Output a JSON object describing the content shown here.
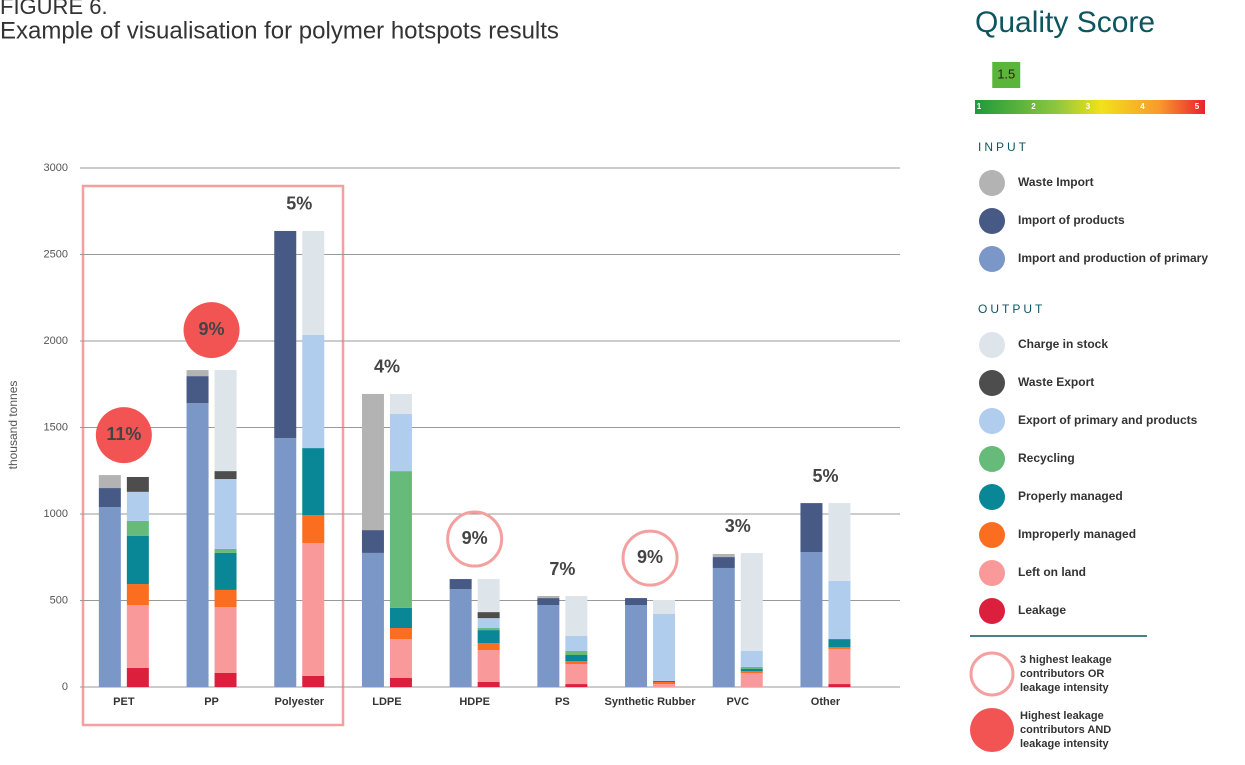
{
  "header": {
    "figure": "FIGURE 6.",
    "title": "Example of visualisation for polymer hotspots results"
  },
  "chart_data": {
    "type": "stacked_bar_pair",
    "ylabel": "thousand tonnes",
    "ylim": [
      0,
      3000
    ],
    "yticks": [
      0,
      500,
      1000,
      1500,
      2000,
      2500,
      3000
    ],
    "grid": true,
    "categories": [
      "PET",
      "PP",
      "Polyester",
      "LDPE",
      "HDPE",
      "PS",
      "Synthetic Rubber",
      "PVC",
      "Other"
    ],
    "groups": [
      "INPUT",
      "OUTPUT"
    ],
    "series": [
      {
        "name": "Waste Import",
        "group": 0,
        "color": "#b3b3b3",
        "values": [
          75,
          35,
          0,
          787,
          0,
          12,
          0,
          18,
          0
        ]
      },
      {
        "name": "Import of products",
        "group": 0,
        "color": "#475a85",
        "values": [
          110,
          156,
          1197,
          132,
          58,
          40,
          40,
          63,
          283
        ]
      },
      {
        "name": "Import and production of  primary",
        "group": 0,
        "color": "#7a97c7",
        "values": [
          1040,
          1641,
          1439,
          775,
          566,
          474,
          474,
          688,
          780
        ]
      },
      {
        "name": "Charge in stock",
        "group": 1,
        "color": "#dde4ea",
        "values": [
          0,
          584,
          601,
          116,
          191,
          231,
          81,
          566,
          450
        ]
      },
      {
        "name": "Waste Export",
        "group": 1,
        "color": "#4d4d4d",
        "values": [
          86,
          46,
          0,
          0,
          35,
          0,
          0,
          0,
          0
        ]
      },
      {
        "name": "Export of primary and  products",
        "group": 1,
        "color": "#b0cdee",
        "values": [
          168,
          404,
          654,
          330,
          57,
          87,
          387,
          92,
          336
        ]
      },
      {
        "name": "Recycling",
        "group": 1,
        "color": "#66bb7a",
        "values": [
          87,
          23,
          0,
          791,
          12,
          23,
          0,
          12,
          0
        ]
      },
      {
        "name": "Properly managed",
        "group": 1,
        "color": "#0a8796",
        "values": [
          278,
          214,
          387,
          116,
          75,
          35,
          6,
          12,
          46
        ]
      },
      {
        "name": "Improperly managed",
        "group": 1,
        "color": "#fb6d1f",
        "values": [
          121,
          99,
          162,
          64,
          40,
          17,
          12,
          11,
          11
        ]
      },
      {
        "name": "Left on land",
        "group": 1,
        "color": "#f9999a",
        "values": [
          364,
          381,
          768,
          225,
          185,
          116,
          17,
          81,
          203
        ]
      },
      {
        "name": "Leakage",
        "group": 1,
        "color": "#dc1f3c",
        "values": [
          110,
          81,
          64,
          52,
          29,
          17,
          0,
          0,
          17
        ]
      }
    ],
    "annotations": [
      {
        "text": "11%",
        "marker": "filled"
      },
      {
        "text": "9%",
        "marker": "filled"
      },
      {
        "text": "5%"
      },
      {
        "text": "4%"
      },
      {
        "text": "9%",
        "marker": "ring"
      },
      {
        "text": "7%"
      },
      {
        "text": "9%",
        "marker": "ring"
      },
      {
        "text": "3%"
      },
      {
        "text": "5%"
      }
    ],
    "marker_legend": [
      {
        "marker": "ring",
        "lines": [
          "3 highest leakage",
          "contributors  OR",
          "leakage intensity"
        ]
      },
      {
        "marker": "filled",
        "lines": [
          "Highest leakage",
          "contributors  AND",
          "leakage intensity"
        ]
      }
    ]
  },
  "quality_score": {
    "title": "Quality Score",
    "value": 1.5,
    "ticks": [
      1,
      2,
      3,
      4,
      5
    ]
  }
}
